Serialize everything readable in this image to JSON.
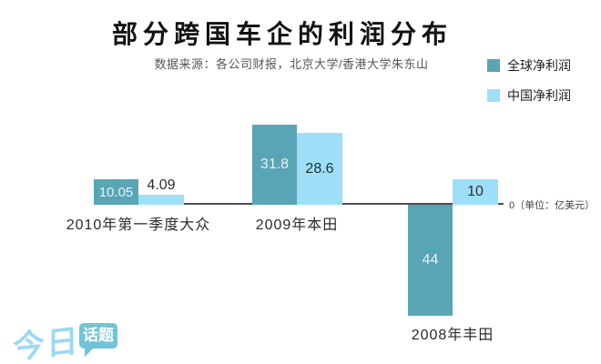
{
  "title": "部分跨国车企的利润分布",
  "subtitle": "数据来源：各公司财报，北京大学/香港大学朱东山",
  "axis_note": "0（单位：亿美元）",
  "legend": {
    "items": [
      {
        "label": "全球净利润",
        "color": "#58a5b6"
      },
      {
        "label": "中国净利润",
        "color": "#9ddff9"
      }
    ]
  },
  "colors": {
    "global_bar": "#58a5b6",
    "china_bar": "#9ddff9",
    "axis_line": "#4d4d4d"
  },
  "logo": {
    "script_text": "今日",
    "bubble_text": "话题"
  },
  "chart_data": {
    "type": "bar",
    "title": "部分跨国车企的利润分布",
    "unit": "亿美元",
    "baseline": 0,
    "grid": false,
    "legend_position": "top-right",
    "categories": [
      "2010年第一季度大众",
      "2009年本田",
      "2008年丰田"
    ],
    "series": [
      {
        "name": "全球净利润",
        "values": [
          10.05,
          31.8,
          -44
        ],
        "labels": [
          "10.05",
          "31.8",
          "44"
        ]
      },
      {
        "name": "中国净利润",
        "values": [
          4.09,
          28.6,
          10
        ],
        "labels": [
          "4.09",
          "28.6",
          "10"
        ]
      }
    ]
  }
}
